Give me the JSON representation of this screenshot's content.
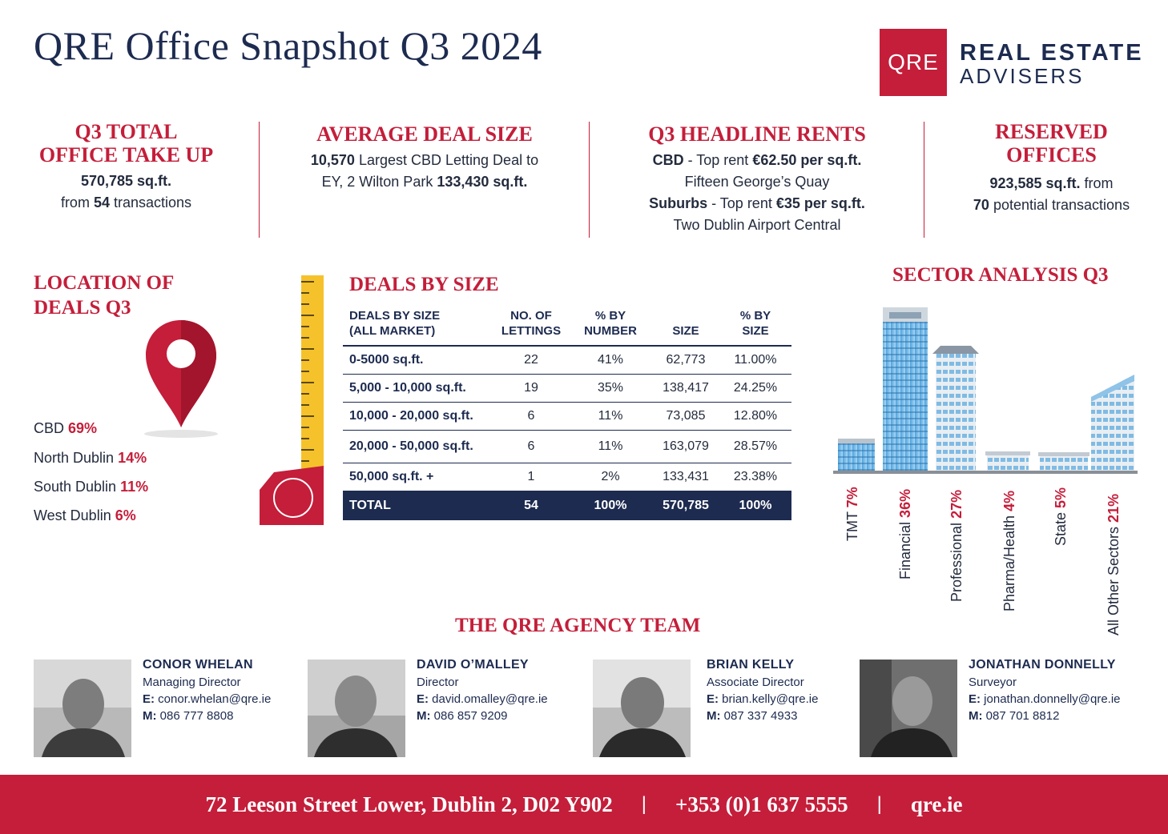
{
  "header": {
    "title": "QRE Office Snapshot Q3 2024",
    "logo_mark": "QRE",
    "logo_line1": "REAL ESTATE",
    "logo_line2": "ADVISERS"
  },
  "stats": {
    "take_up": {
      "head1": "Q3 TOTAL",
      "head2": "OFFICE TAKE UP",
      "value": "570,785 sq.ft.",
      "from": "from",
      "count": "54",
      "suffix": "transactions"
    },
    "avg_deal": {
      "head": "AVERAGE DEAL SIZE",
      "value": "10,570",
      "text1": "Largest CBD Letting Deal to",
      "text2": "EY, 2 Wilton Park",
      "size": "133,430 sq.ft."
    },
    "rents": {
      "head": "Q3 HEADLINE RENTS",
      "cbd_label": "CBD",
      "cbd_text": "- Top rent",
      "cbd_rent": "€62.50 per sq.ft.",
      "cbd_location": "Fifteen George’s Quay",
      "sub_label": "Suburbs",
      "sub_text": "- Top rent",
      "sub_rent": "€35 per sq.ft.",
      "sub_location": "Two Dublin Airport Central"
    },
    "reserved": {
      "head1": "RESERVED",
      "head2": "OFFICES",
      "value": "923,585 sq.ft.",
      "from": "from",
      "count": "70",
      "suffix": "potential transactions"
    }
  },
  "location": {
    "head1": "LOCATION OF",
    "head2": "DEALS Q3",
    "items": [
      {
        "name": "CBD",
        "pct": "69%"
      },
      {
        "name": "North Dublin",
        "pct": "14%"
      },
      {
        "name": "South Dublin",
        "pct": "11%"
      },
      {
        "name": "West Dublin",
        "pct": "6%"
      }
    ]
  },
  "deals": {
    "head": "DEALS BY SIZE",
    "columns": [
      [
        "DEALS BY SIZE",
        "(ALL MARKET)"
      ],
      [
        "NO. OF",
        "LETTINGS"
      ],
      [
        "% BY",
        "NUMBER"
      ],
      [
        "SIZE",
        ""
      ],
      [
        "% BY",
        "SIZE"
      ]
    ],
    "rows": [
      [
        "0-5000 sq.ft.",
        "22",
        "41%",
        "62,773",
        "11.00%"
      ],
      [
        "5,000 - 10,000 sq.ft.",
        "19",
        "35%",
        "138,417",
        "24.25%"
      ],
      [
        "10,000 - 20,000 sq.ft.",
        "6",
        "11%",
        "73,085",
        "12.80%"
      ],
      [
        "20,000 - 50,000 sq.ft.",
        "6",
        "11%",
        "163,079",
        "28.57%"
      ],
      [
        "50,000 sq.ft. +",
        "1",
        "2%",
        "133,431",
        "23.38%"
      ]
    ],
    "total": [
      "TOTAL",
      "54",
      "100%",
      "570,785",
      "100%"
    ]
  },
  "sectors": {
    "head": "SECTOR ANALYSIS Q3",
    "items": [
      {
        "name": "TMT",
        "pct": "7%"
      },
      {
        "name": "Financial",
        "pct": "36%"
      },
      {
        "name": "Professional",
        "pct": "27%"
      },
      {
        "name": "Pharma/Health",
        "pct": "4%"
      },
      {
        "name": "State",
        "pct": "5%"
      },
      {
        "name": "All Other Sectors",
        "pct": "21%"
      }
    ]
  },
  "team": {
    "head": "THE QRE AGENCY TEAM",
    "email_label": "E:",
    "mobile_label": "M:",
    "members": [
      {
        "name": "CONOR WHELAN",
        "role": "Managing Director",
        "email": "conor.whelan@qre.ie",
        "phone": "086 777 8808"
      },
      {
        "name": "DAVID O’MALLEY",
        "role": "Director",
        "email": "david.omalley@qre.ie",
        "phone": "086 857 9209"
      },
      {
        "name": "BRIAN KELLY",
        "role": "Associate Director",
        "email": "brian.kelly@qre.ie",
        "phone": "087 337 4933"
      },
      {
        "name": "JONATHAN DONNELLY",
        "role": "Surveyor",
        "email": "jonathan.donnelly@qre.ie",
        "phone": "087 701 8812"
      }
    ]
  },
  "footer": {
    "address": "72 Leeson Street Lower, Dublin 2, D02 Y902",
    "phone": "+353 (0)1 637 5555",
    "web": "qre.ie",
    "separator": "|"
  }
}
